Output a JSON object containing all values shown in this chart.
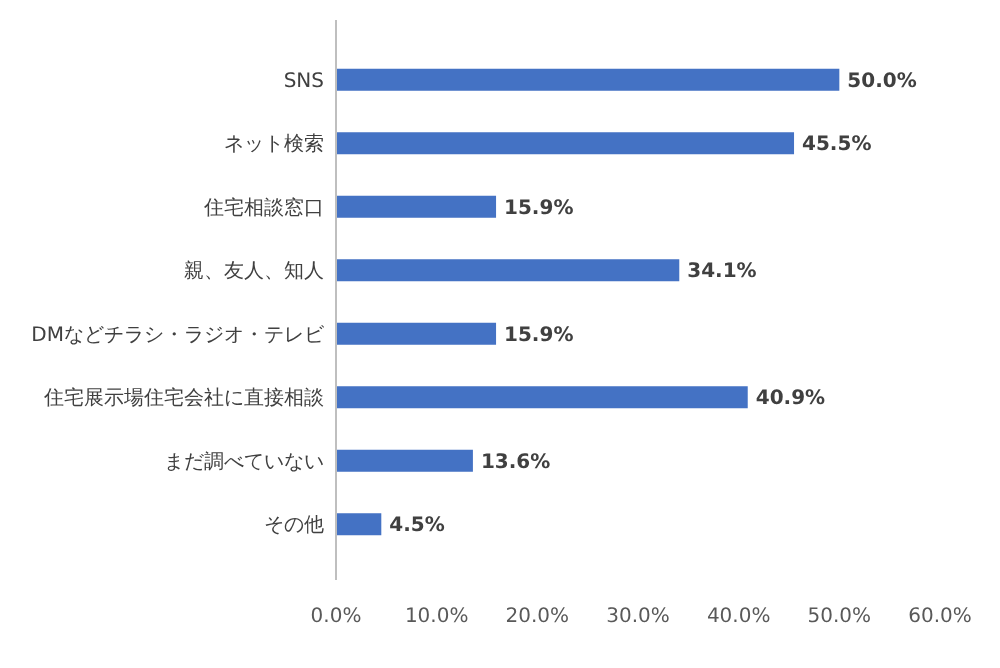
{
  "chart_data": {
    "type": "bar",
    "orientation": "horizontal",
    "categories": [
      "SNS",
      "ネット検索",
      "住宅相談窓口",
      "親、友人、知人",
      "DMなどチラシ・ラジオ・テレビ",
      "住宅展示場住宅会社に直接相談",
      "まだ調べていない",
      "その他"
    ],
    "values": [
      50.0,
      45.5,
      15.9,
      34.1,
      15.9,
      40.9,
      13.6,
      4.5
    ],
    "value_labels": [
      "50.0%",
      "45.5%",
      "15.9%",
      "34.1%",
      "15.9%",
      "40.9%",
      "13.6%",
      "4.5%"
    ],
    "color": "#4472c4",
    "xlim": [
      0,
      60
    ],
    "xticks": [
      {
        "value": 0,
        "label": "0.0%"
      },
      {
        "value": 10,
        "label": "10.0%"
      },
      {
        "value": 20,
        "label": "20.0%"
      },
      {
        "value": 30,
        "label": "30.0%"
      },
      {
        "value": 40,
        "label": "40.0%"
      },
      {
        "value": 50,
        "label": "50.0%"
      },
      {
        "value": 60,
        "label": "60.0%"
      }
    ],
    "grid": false
  }
}
